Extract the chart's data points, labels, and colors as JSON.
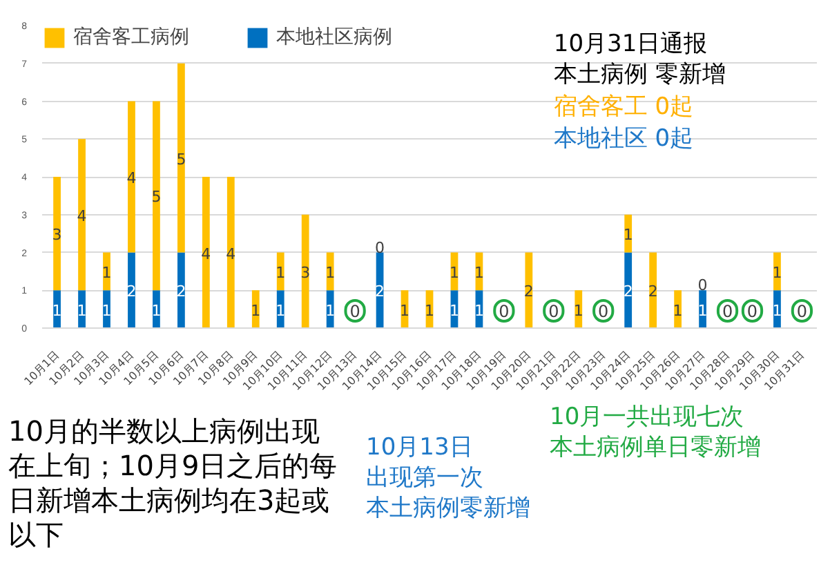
{
  "chart_data": {
    "type": "bar",
    "stacked": true,
    "categories": [
      "10月1日",
      "10月2日",
      "10月3日",
      "10月4日",
      "10月5日",
      "10月6日",
      "10月7日",
      "10月8日",
      "10月9日",
      "10月10日",
      "10月11日",
      "10月12日",
      "10月13日",
      "10月14日",
      "10月15日",
      "10月16日",
      "10月17日",
      "10月18日",
      "10月19日",
      "10月20日",
      "10月21日",
      "10月22日",
      "10月23日",
      "10月24日",
      "10月25日",
      "10月26日",
      "10月27日",
      "10月28日",
      "10月29日",
      "10月30日",
      "10月31日"
    ],
    "series": [
      {
        "name": "本地社区病例",
        "color": "#0070c0",
        "values": [
          1,
          1,
          1,
          2,
          1,
          2,
          0,
          0,
          0,
          1,
          0,
          1,
          0,
          2,
          0,
          0,
          1,
          1,
          0,
          0,
          0,
          0,
          0,
          2,
          0,
          0,
          1,
          0,
          0,
          1,
          0
        ],
        "value_labels": [
          "1",
          "1",
          "1",
          "2",
          "1",
          "2",
          null,
          null,
          null,
          "1",
          null,
          "1",
          null,
          "2",
          null,
          null,
          "1",
          "1",
          null,
          null,
          null,
          null,
          null,
          "2",
          null,
          null,
          "1",
          null,
          null,
          "1",
          null
        ]
      },
      {
        "name": "宿舍客工病例",
        "color": "#ffc000",
        "values": [
          3,
          4,
          1,
          4,
          5,
          5,
          4,
          4,
          1,
          1,
          3,
          1,
          0,
          0,
          1,
          1,
          1,
          1,
          0,
          2,
          0,
          1,
          0,
          1,
          2,
          1,
          0,
          0,
          0,
          1,
          0
        ],
        "value_labels": [
          "3",
          "4",
          "1",
          "4",
          "5",
          "5",
          "4",
          "4",
          "1",
          "1",
          "3",
          "1",
          null,
          "0",
          "1",
          "1",
          "1",
          "1",
          null,
          "2",
          null,
          "1",
          null,
          "1",
          "2",
          "1",
          "0",
          null,
          null,
          "1",
          null
        ]
      }
    ],
    "ylim": [
      0,
      8
    ],
    "yticks": [
      0,
      1,
      2,
      3,
      4,
      5,
      6,
      7,
      8
    ],
    "grid": "y",
    "legend": "top left",
    "annotations": [
      {
        "text": "0",
        "x": "10月13日",
        "y": 0
      },
      {
        "text": "0",
        "x": "10月19日",
        "y": 0
      },
      {
        "text": "0",
        "x": "10月21日",
        "y": 0
      },
      {
        "text": "0",
        "x": "10月23日",
        "y": 0
      },
      {
        "text": "0",
        "x": "10月28日",
        "y": 0
      },
      {
        "text": "0",
        "x": "10月29日",
        "y": 0
      },
      {
        "text": "0",
        "x": "10月31日",
        "y": 0
      },
      "10月31日通报",
      "本土病例 零新增",
      "宿舍客工 0起",
      "本地社区 0起",
      "10月的半数以上病例出现在上旬；10月9日之后的每日新增本土病例均在3起或以下",
      "10月13日",
      "出现第一次",
      "本土病例零新增",
      "10月一共出现七次",
      "本土病例单日零新增"
    ]
  }
}
